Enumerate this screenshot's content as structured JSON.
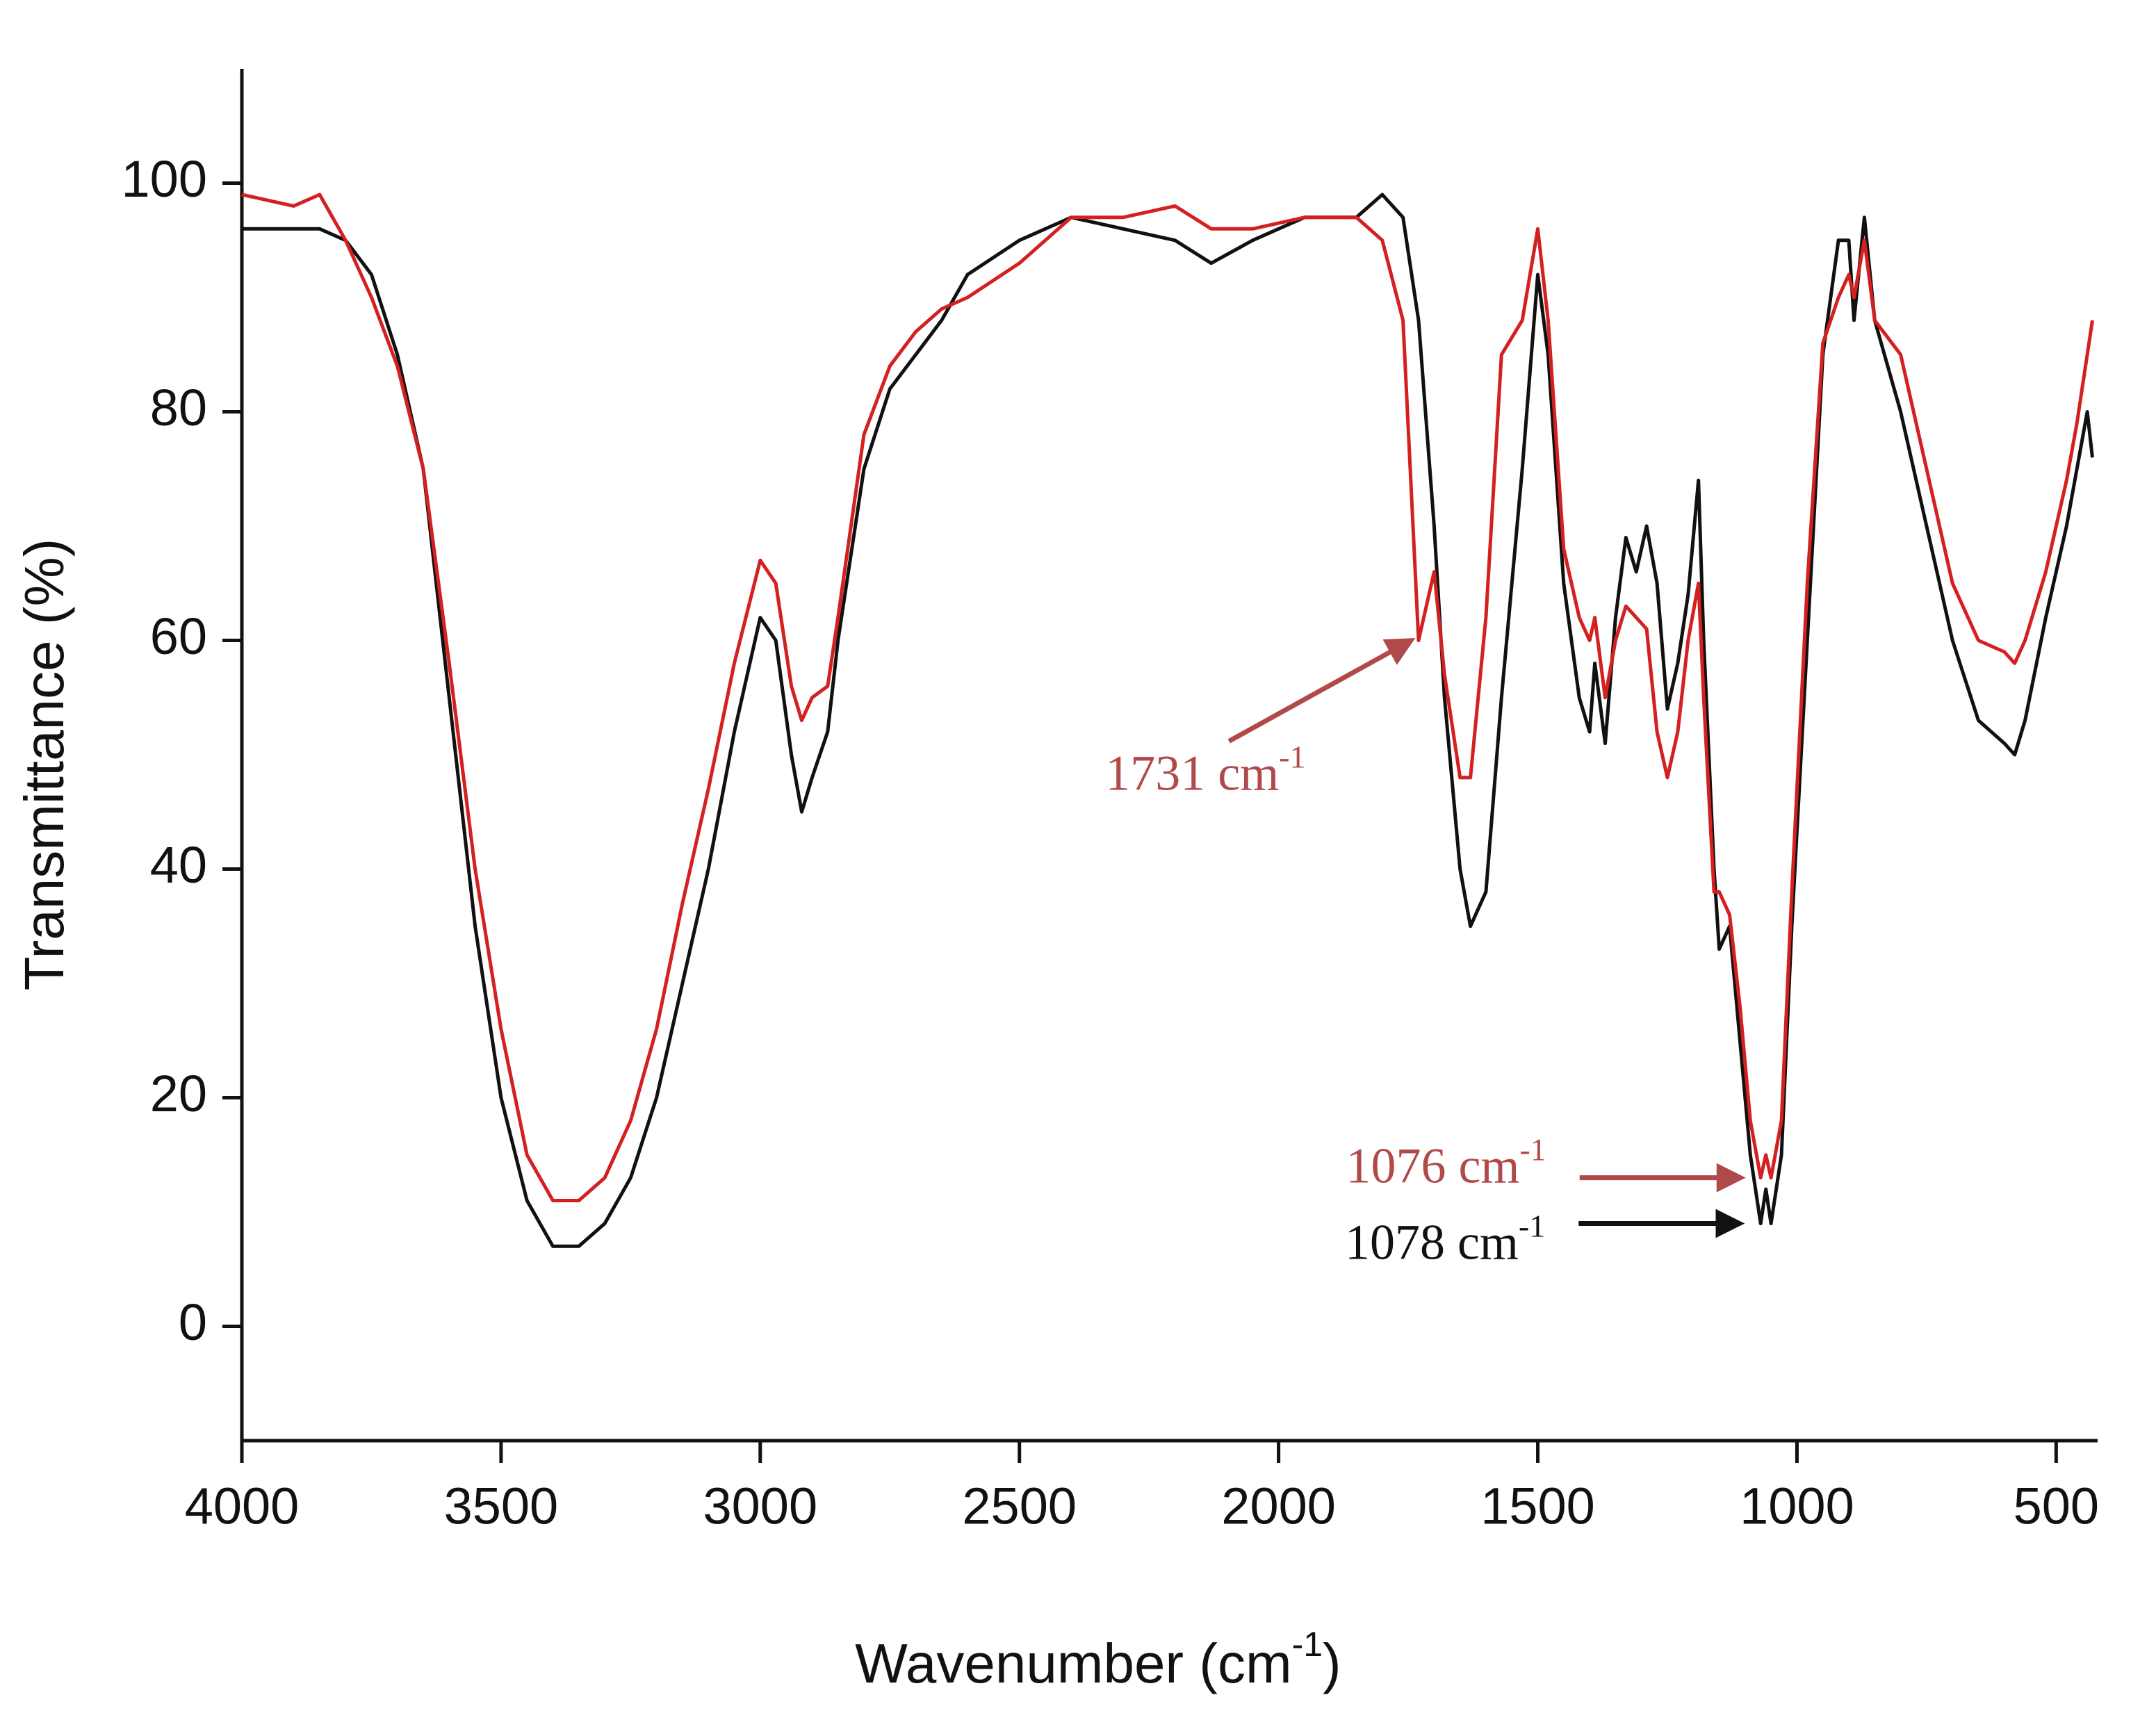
{
  "chart_data": {
    "type": "line",
    "x_label": {
      "text": "Wavenumber (cm",
      "sup": "-1",
      "tail": ")"
    },
    "y_label": "Transmittance (%)",
    "xlim": [
      4000,
      420
    ],
    "xticks": [
      4000,
      3500,
      3000,
      2500,
      2000,
      1500,
      1000,
      500
    ],
    "ylim": [
      -10,
      110
    ],
    "yticks": [
      0,
      20,
      40,
      60,
      80,
      100
    ],
    "grid": false,
    "x": [
      4000,
      3900,
      3850,
      3800,
      3750,
      3700,
      3650,
      3600,
      3550,
      3500,
      3450,
      3400,
      3350,
      3300,
      3250,
      3200,
      3150,
      3100,
      3050,
      3000,
      2970,
      2940,
      2920,
      2900,
      2870,
      2850,
      2800,
      2750,
      2700,
      2650,
      2600,
      2500,
      2400,
      2300,
      2200,
      2130,
      2050,
      1950,
      1850,
      1800,
      1760,
      1730,
      1700,
      1680,
      1650,
      1630,
      1600,
      1570,
      1530,
      1500,
      1480,
      1450,
      1420,
      1400,
      1390,
      1370,
      1350,
      1330,
      1310,
      1290,
      1270,
      1250,
      1230,
      1210,
      1190,
      1180,
      1160,
      1150,
      1130,
      1110,
      1090,
      1070,
      1060,
      1050,
      1030,
      1010,
      980,
      950,
      920,
      900,
      890,
      870,
      850,
      800,
      750,
      700,
      650,
      600,
      580,
      560,
      520,
      480,
      460,
      440,
      430
    ],
    "series": [
      {
        "color": "#111111",
        "values": [
          96,
          96,
          96,
          95,
          92,
          85,
          75,
          55,
          35,
          20,
          11,
          7,
          7,
          9,
          13,
          20,
          30,
          40,
          52,
          62,
          60,
          50,
          45,
          48,
          52,
          60,
          75,
          82,
          85,
          88,
          92,
          95,
          97,
          96,
          95,
          93,
          95,
          97,
          97,
          99,
          97,
          88,
          70,
          55,
          40,
          35,
          38,
          55,
          75,
          92,
          85,
          65,
          55,
          52,
          58,
          51,
          62,
          69,
          66,
          70,
          65,
          54,
          58,
          64,
          74,
          60,
          40,
          33,
          35,
          25,
          15,
          9,
          12,
          9,
          15,
          35,
          60,
          85,
          95,
          95,
          88,
          97,
          88,
          80,
          70,
          60,
          53,
          51,
          50,
          53,
          62,
          70,
          75,
          80,
          76
        ]
      },
      {
        "color": "#d42020",
        "values": [
          99,
          98,
          99,
          95,
          90,
          84,
          75,
          58,
          40,
          26,
          15,
          11,
          11,
          13,
          18,
          26,
          37,
          47,
          58,
          67,
          65,
          56,
          53,
          55,
          56,
          62,
          78,
          84,
          87,
          89,
          90,
          93,
          97,
          97,
          98,
          96,
          96,
          97,
          97,
          95,
          88,
          60,
          66,
          57,
          48,
          48,
          62,
          85,
          88,
          96,
          88,
          68,
          62,
          60,
          62,
          55,
          60,
          63,
          62,
          61,
          52,
          48,
          52,
          60,
          65,
          55,
          38,
          38,
          36,
          28,
          18,
          13,
          15,
          13,
          18,
          38,
          65,
          86,
          90,
          92,
          90,
          95,
          88,
          85,
          75,
          65,
          60,
          59,
          58,
          60,
          66,
          74,
          79,
          85,
          88
        ]
      }
    ],
    "annotations": [
      {
        "text": "1731 cm",
        "sup": "-1",
        "color": "#b04a4a",
        "x": 1731,
        "y": 60
      },
      {
        "text": "1076 cm",
        "sup": "-1",
        "color": "#b04a4a",
        "x": 1076,
        "y": 13
      },
      {
        "text": "1078 cm",
        "sup": "-1",
        "color": "#111111",
        "x": 1078,
        "y": 9
      }
    ]
  }
}
